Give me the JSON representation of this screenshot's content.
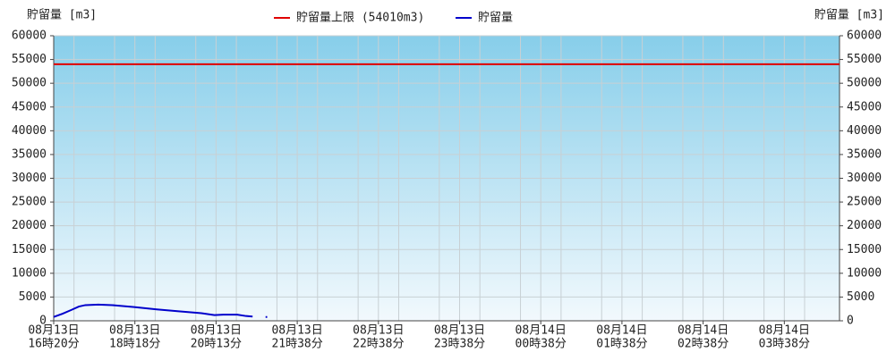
{
  "chart_data": {
    "type": "line",
    "y_label": "貯留量 [m3]",
    "y2_label": "貯留量 [m3]",
    "categories": [
      [
        "08月13日",
        "16時20分"
      ],
      [
        "08月13日",
        "18時18分"
      ],
      [
        "08月13日",
        "20時13分"
      ],
      [
        "08月13日",
        "21時38分"
      ],
      [
        "08月13日",
        "22時38分"
      ],
      [
        "08月13日",
        "23時38分"
      ],
      [
        "08月14日",
        "00時38分"
      ],
      [
        "08月14日",
        "01時38分"
      ],
      [
        "08月14日",
        "02時38分"
      ],
      [
        "08月14日",
        "03時38分"
      ]
    ],
    "xlim": [
      0,
      9.68
    ],
    "ylim": [
      0,
      60000
    ],
    "yticks": [
      0,
      5000,
      10000,
      15000,
      20000,
      25000,
      30000,
      35000,
      40000,
      45000,
      50000,
      55000,
      60000
    ],
    "y2lim": [
      0,
      60000
    ],
    "y2ticks": [
      0,
      5000,
      10000,
      15000,
      20000,
      25000,
      30000,
      35000,
      40000,
      45000,
      50000,
      55000,
      60000
    ],
    "grid": true,
    "limit": {
      "name": "貯留量上限 (54010m3)",
      "color": "#e00000",
      "value": 54010
    },
    "series": [
      {
        "name": "貯留量",
        "color": "#0000cc",
        "x": [
          0,
          0.11,
          0.22,
          0.31,
          0.39,
          0.55,
          0.72,
          0.99,
          1.27,
          1.54,
          1.82,
          1.98,
          2.09,
          2.26,
          2.37,
          2.45,
          null,
          2.61,
          2.63
        ],
        "values": [
          800,
          1500,
          2300,
          3000,
          3300,
          3400,
          3300,
          2900,
          2400,
          2000,
          1600,
          1200,
          1300,
          1300,
          1000,
          900,
          null,
          800,
          800
        ]
      }
    ]
  }
}
